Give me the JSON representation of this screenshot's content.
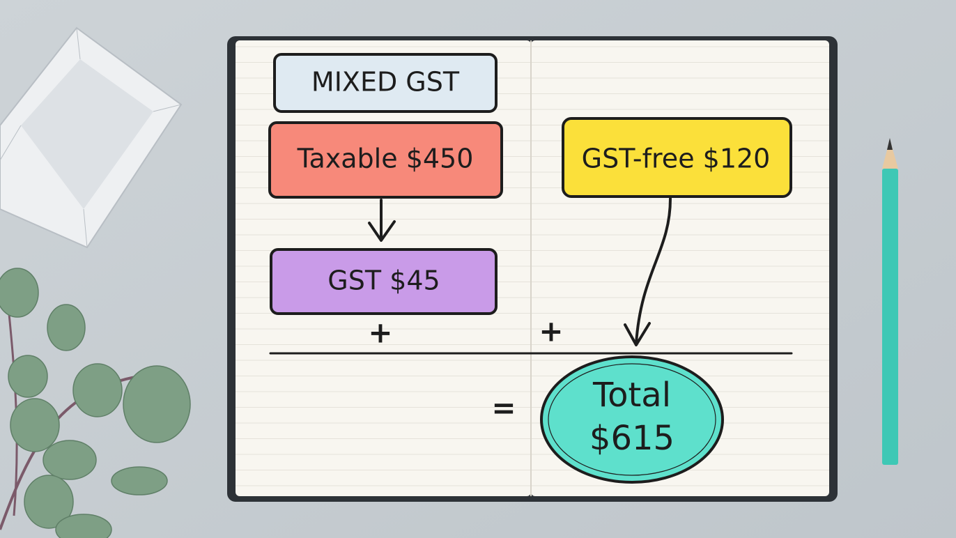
{
  "nodes": [
    {
      "label": "MIXED GST"
    },
    {
      "label": "Taxable $450"
    },
    {
      "label": "GST $45"
    },
    {
      "label": "GST-free $120"
    },
    {
      "lines": [
        "Total",
        "$615"
      ]
    }
  ],
  "operators": [
    "+",
    "+",
    "="
  ]
}
